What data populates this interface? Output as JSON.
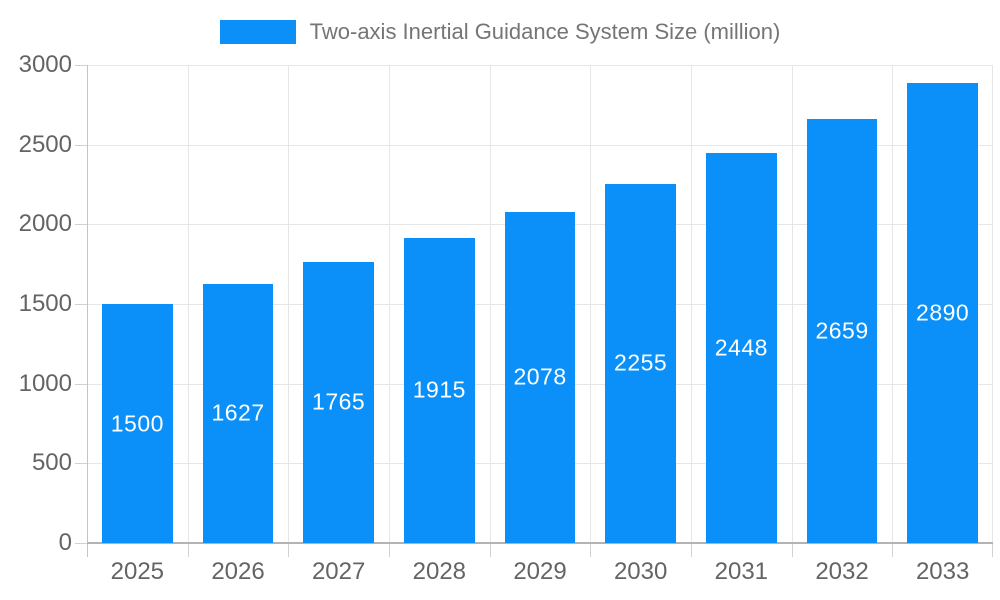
{
  "chart_data": {
    "type": "bar",
    "title": "Two-axis Inertial Guidance System Size (million)",
    "categories": [
      "2025",
      "2026",
      "2027",
      "2028",
      "2029",
      "2030",
      "2031",
      "2032",
      "2033"
    ],
    "values": [
      1500,
      1627,
      1765,
      1915,
      2078,
      2255,
      2448,
      2659,
      2890
    ],
    "xlabel": "",
    "ylabel": "",
    "ylim": [
      0,
      3000
    ],
    "yticks": [
      "0",
      "500",
      "1000",
      "1500",
      "2000",
      "2500",
      "3000"
    ],
    "grid": true,
    "legend_position": "top-center",
    "value_labels_position": "inside-center"
  },
  "colors": {
    "bar": "#0a90f8",
    "value_label": "#ffffff",
    "legend_text": "#757575",
    "tick_label": "#646464",
    "gridline": "#e6e6e6",
    "axis_line": "#b3b3b3",
    "background": "#ffffff"
  }
}
